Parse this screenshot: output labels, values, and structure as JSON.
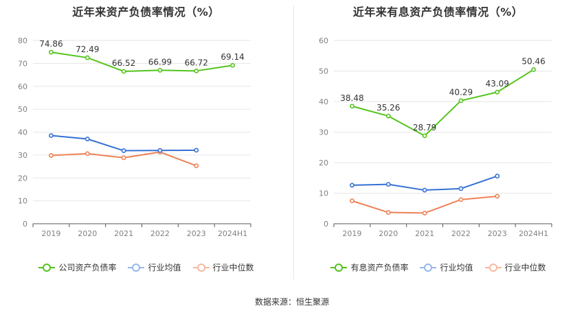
{
  "source_label": "数据来源：恒生聚源",
  "chart_data": [
    {
      "type": "line",
      "title": "近年来资产负债率情况（%）",
      "categories": [
        "2019",
        "2020",
        "2021",
        "2022",
        "2023",
        "2024H1"
      ],
      "ylim": [
        0,
        80
      ],
      "yticks": [
        0,
        10,
        20,
        30,
        40,
        50,
        60,
        70,
        80
      ],
      "series": [
        {
          "name": "公司资产负债率",
          "color": "#52c41a",
          "values": [
            74.86,
            72.49,
            66.52,
            66.99,
            66.72,
            69.14
          ],
          "labels": true
        },
        {
          "name": "行业均值",
          "color": "#3370d4",
          "values": [
            38.5,
            37.0,
            31.9,
            32.0,
            32.1,
            null
          ],
          "labels": false
        },
        {
          "name": "行业中位数",
          "color": "#f08054",
          "values": [
            29.8,
            30.6,
            28.8,
            31.3,
            25.3,
            null
          ],
          "labels": false
        }
      ],
      "legend": [
        {
          "name": "公司资产负债率",
          "color": "#52c41a",
          "ring": "#52c41a"
        },
        {
          "name": "行业均值",
          "color": "#94b8ee",
          "ring": "#94b8ee"
        },
        {
          "name": "行业中位数",
          "color": "#f6b8a0",
          "ring": "#f6b8a0"
        }
      ]
    },
    {
      "type": "line",
      "title": "近年来有息资产负债率情况（%）",
      "categories": [
        "2019",
        "2020",
        "2021",
        "2022",
        "2023",
        "2024H1"
      ],
      "ylim": [
        0,
        60
      ],
      "yticks": [
        0,
        10,
        20,
        30,
        40,
        50,
        60
      ],
      "series": [
        {
          "name": "有息资产负债率",
          "color": "#52c41a",
          "values": [
            38.48,
            35.26,
            28.79,
            40.29,
            43.09,
            50.46
          ],
          "labels": true
        },
        {
          "name": "行业均值",
          "color": "#3370d4",
          "values": [
            12.6,
            12.9,
            11.0,
            11.5,
            15.6,
            null
          ],
          "labels": false
        },
        {
          "name": "行业中位数",
          "color": "#f08054",
          "values": [
            7.5,
            3.7,
            3.5,
            7.9,
            9.0,
            null
          ],
          "labels": false
        }
      ],
      "legend": [
        {
          "name": "有息资产负债率",
          "color": "#52c41a",
          "ring": "#52c41a"
        },
        {
          "name": "行业均值",
          "color": "#94b8ee",
          "ring": "#94b8ee"
        },
        {
          "name": "行业中位数",
          "color": "#f6b8a0",
          "ring": "#f6b8a0"
        }
      ]
    }
  ]
}
